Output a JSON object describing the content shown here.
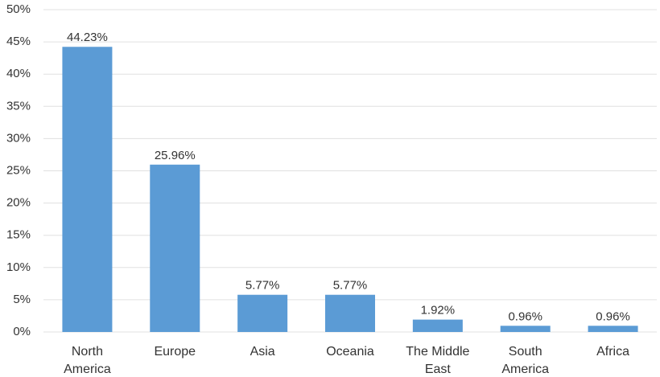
{
  "chart_data": {
    "type": "bar",
    "categories": [
      "North America",
      "Europe",
      "Asia",
      "Oceania",
      "The Middle East",
      "South America",
      "Africa"
    ],
    "values": [
      44.23,
      25.96,
      5.77,
      5.77,
      1.92,
      0.96,
      0.96
    ],
    "value_labels": [
      "44.23%",
      "25.96%",
      "5.77%",
      "5.77%",
      "1.92%",
      "0.96%",
      "0.96%"
    ],
    "color": "#5b9bd5",
    "ylim": [
      0,
      50
    ],
    "yticks": [
      {
        "value": 0,
        "label": "0%"
      },
      {
        "value": 5,
        "label": "5%"
      },
      {
        "value": 10,
        "label": "10%"
      },
      {
        "value": 15,
        "label": "15%"
      },
      {
        "value": 20,
        "label": "20%"
      },
      {
        "value": 25,
        "label": "25%"
      },
      {
        "value": 30,
        "label": "30%"
      },
      {
        "value": 35,
        "label": "35%"
      },
      {
        "value": 40,
        "label": "40%"
      },
      {
        "value": 45,
        "label": "45%"
      },
      {
        "value": 50,
        "label": "50%"
      }
    ],
    "grid": true
  }
}
